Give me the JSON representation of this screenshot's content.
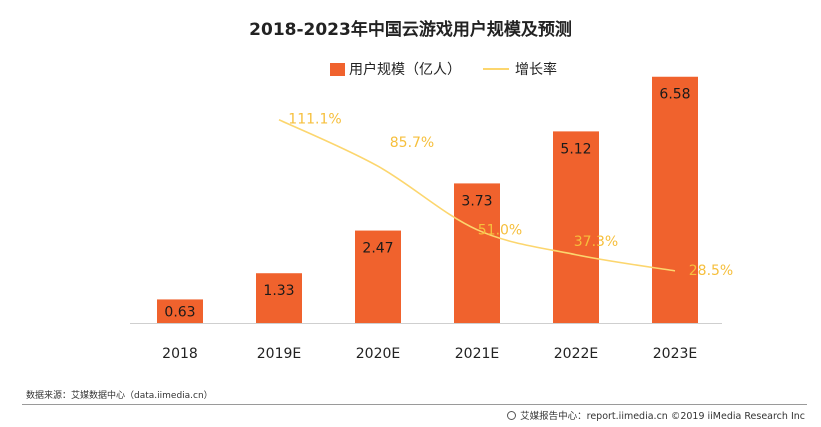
{
  "chart_data": {
    "type": "bar",
    "title": "2018-2023年中国云游戏用户规模及预测",
    "categories": [
      "2018",
      "2019E",
      "2020E",
      "2021E",
      "2022E",
      "2023E"
    ],
    "series": [
      {
        "name": "用户规模（亿人）",
        "type": "bar",
        "values": [
          0.63,
          1.33,
          2.47,
          3.73,
          5.12,
          6.58
        ],
        "labels": [
          "0.63",
          "1.33",
          "2.47",
          "3.73",
          "5.12",
          "6.58"
        ],
        "color": "#f0622d"
      },
      {
        "name": "增长率",
        "type": "line",
        "values": [
          null,
          111.1,
          85.7,
          51.0,
          37.3,
          28.5
        ],
        "labels": [
          "",
          "111.1%",
          "85.7%",
          "51.0%",
          "37.3%",
          "28.5%"
        ],
        "color": "#fcd66e"
      }
    ],
    "ylim_bar": [
      0,
      6.6
    ],
    "ylim_line": [
      0,
      135
    ],
    "legend_position": "top-center",
    "grid": false
  },
  "source_text": "数据来源：艾媒数据中心（data.iimedia.cn）",
  "footer_text": "艾媒报告中心：report.iimedia.cn ©2019  iiMedia Research  Inc"
}
